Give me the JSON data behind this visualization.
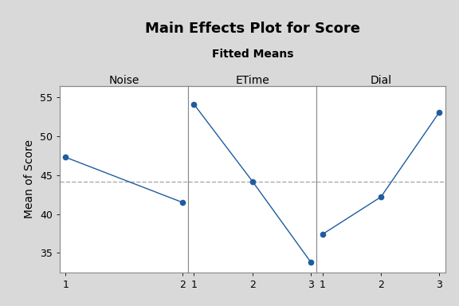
{
  "title": "Main Effects Plot for Score",
  "subtitle": "Fitted Means",
  "ylabel": "Mean of Score",
  "background_color": "#d9d9d9",
  "plot_background": "#ffffff",
  "panels": [
    {
      "label": "Noise",
      "x": [
        1,
        2
      ],
      "y": [
        47.3,
        41.5
      ]
    },
    {
      "label": "ETime",
      "x": [
        1,
        2,
        3
      ],
      "y": [
        54.1,
        44.2,
        33.8
      ]
    },
    {
      "label": "Dial",
      "x": [
        1,
        2,
        3
      ],
      "y": [
        37.4,
        42.2,
        53.1
      ]
    }
  ],
  "grand_mean": 44.2,
  "ylim": [
    32.5,
    56.5
  ],
  "yticks": [
    35,
    40,
    45,
    50,
    55
  ],
  "line_color": "#1f5c9e",
  "marker": "o",
  "marker_size": 4.5,
  "dashed_color": "#aaaaaa",
  "title_fontsize": 13,
  "subtitle_fontsize": 10,
  "panel_label_fontsize": 10,
  "tick_fontsize": 9,
  "ylabel_fontsize": 10,
  "spine_color": "#888888"
}
